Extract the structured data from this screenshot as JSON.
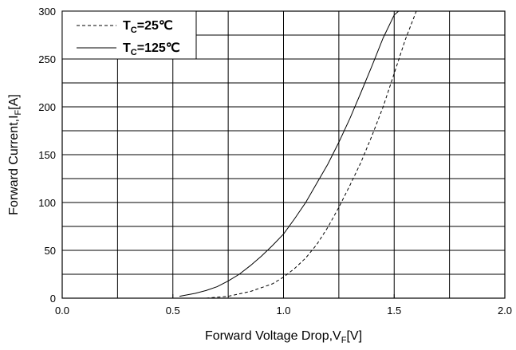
{
  "chart_data": {
    "type": "line",
    "xlabel": "Forward Voltage Drop,V",
    "xlabel_sub": "F",
    "xlabel_unit": "[V]",
    "ylabel": "Forward Current,I",
    "ylabel_sub": "F",
    "ylabel_unit": "[A]",
    "xlim": [
      0.0,
      2.0
    ],
    "ylim": [
      0,
      300
    ],
    "xticks": [
      "0.0",
      "0.5",
      "1.0",
      "1.5",
      "2.0"
    ],
    "yticks": [
      "0",
      "50",
      "100",
      "150",
      "200",
      "250",
      "300"
    ],
    "grid": true,
    "legend_position": "top-left",
    "series": [
      {
        "name": "T_C=25℃",
        "name_main": "T",
        "name_sub": "C",
        "name_rest": "=25℃",
        "style": "dashed",
        "color": "#000000",
        "x": [
          0.65,
          0.75,
          0.85,
          0.95,
          1.0,
          1.05,
          1.1,
          1.15,
          1.2,
          1.25,
          1.3,
          1.35,
          1.4,
          1.45,
          1.5,
          1.55,
          1.6
        ],
        "y": [
          0,
          2,
          7,
          15,
          22,
          31,
          42,
          56,
          74,
          95,
          118,
          142,
          170,
          200,
          235,
          270,
          300
        ]
      },
      {
        "name": "T_C=125℃",
        "name_main": "T",
        "name_sub": "C",
        "name_rest": "=125℃",
        "style": "solid",
        "color": "#000000",
        "x": [
          0.53,
          0.6,
          0.65,
          0.7,
          0.75,
          0.8,
          0.85,
          0.9,
          0.95,
          1.0,
          1.05,
          1.1,
          1.15,
          1.2,
          1.25,
          1.3,
          1.35,
          1.4,
          1.45,
          1.5,
          1.52
        ],
        "y": [
          2,
          5,
          8,
          12,
          18,
          25,
          34,
          44,
          55,
          67,
          83,
          100,
          120,
          140,
          163,
          188,
          215,
          243,
          272,
          296,
          300
        ]
      }
    ]
  }
}
